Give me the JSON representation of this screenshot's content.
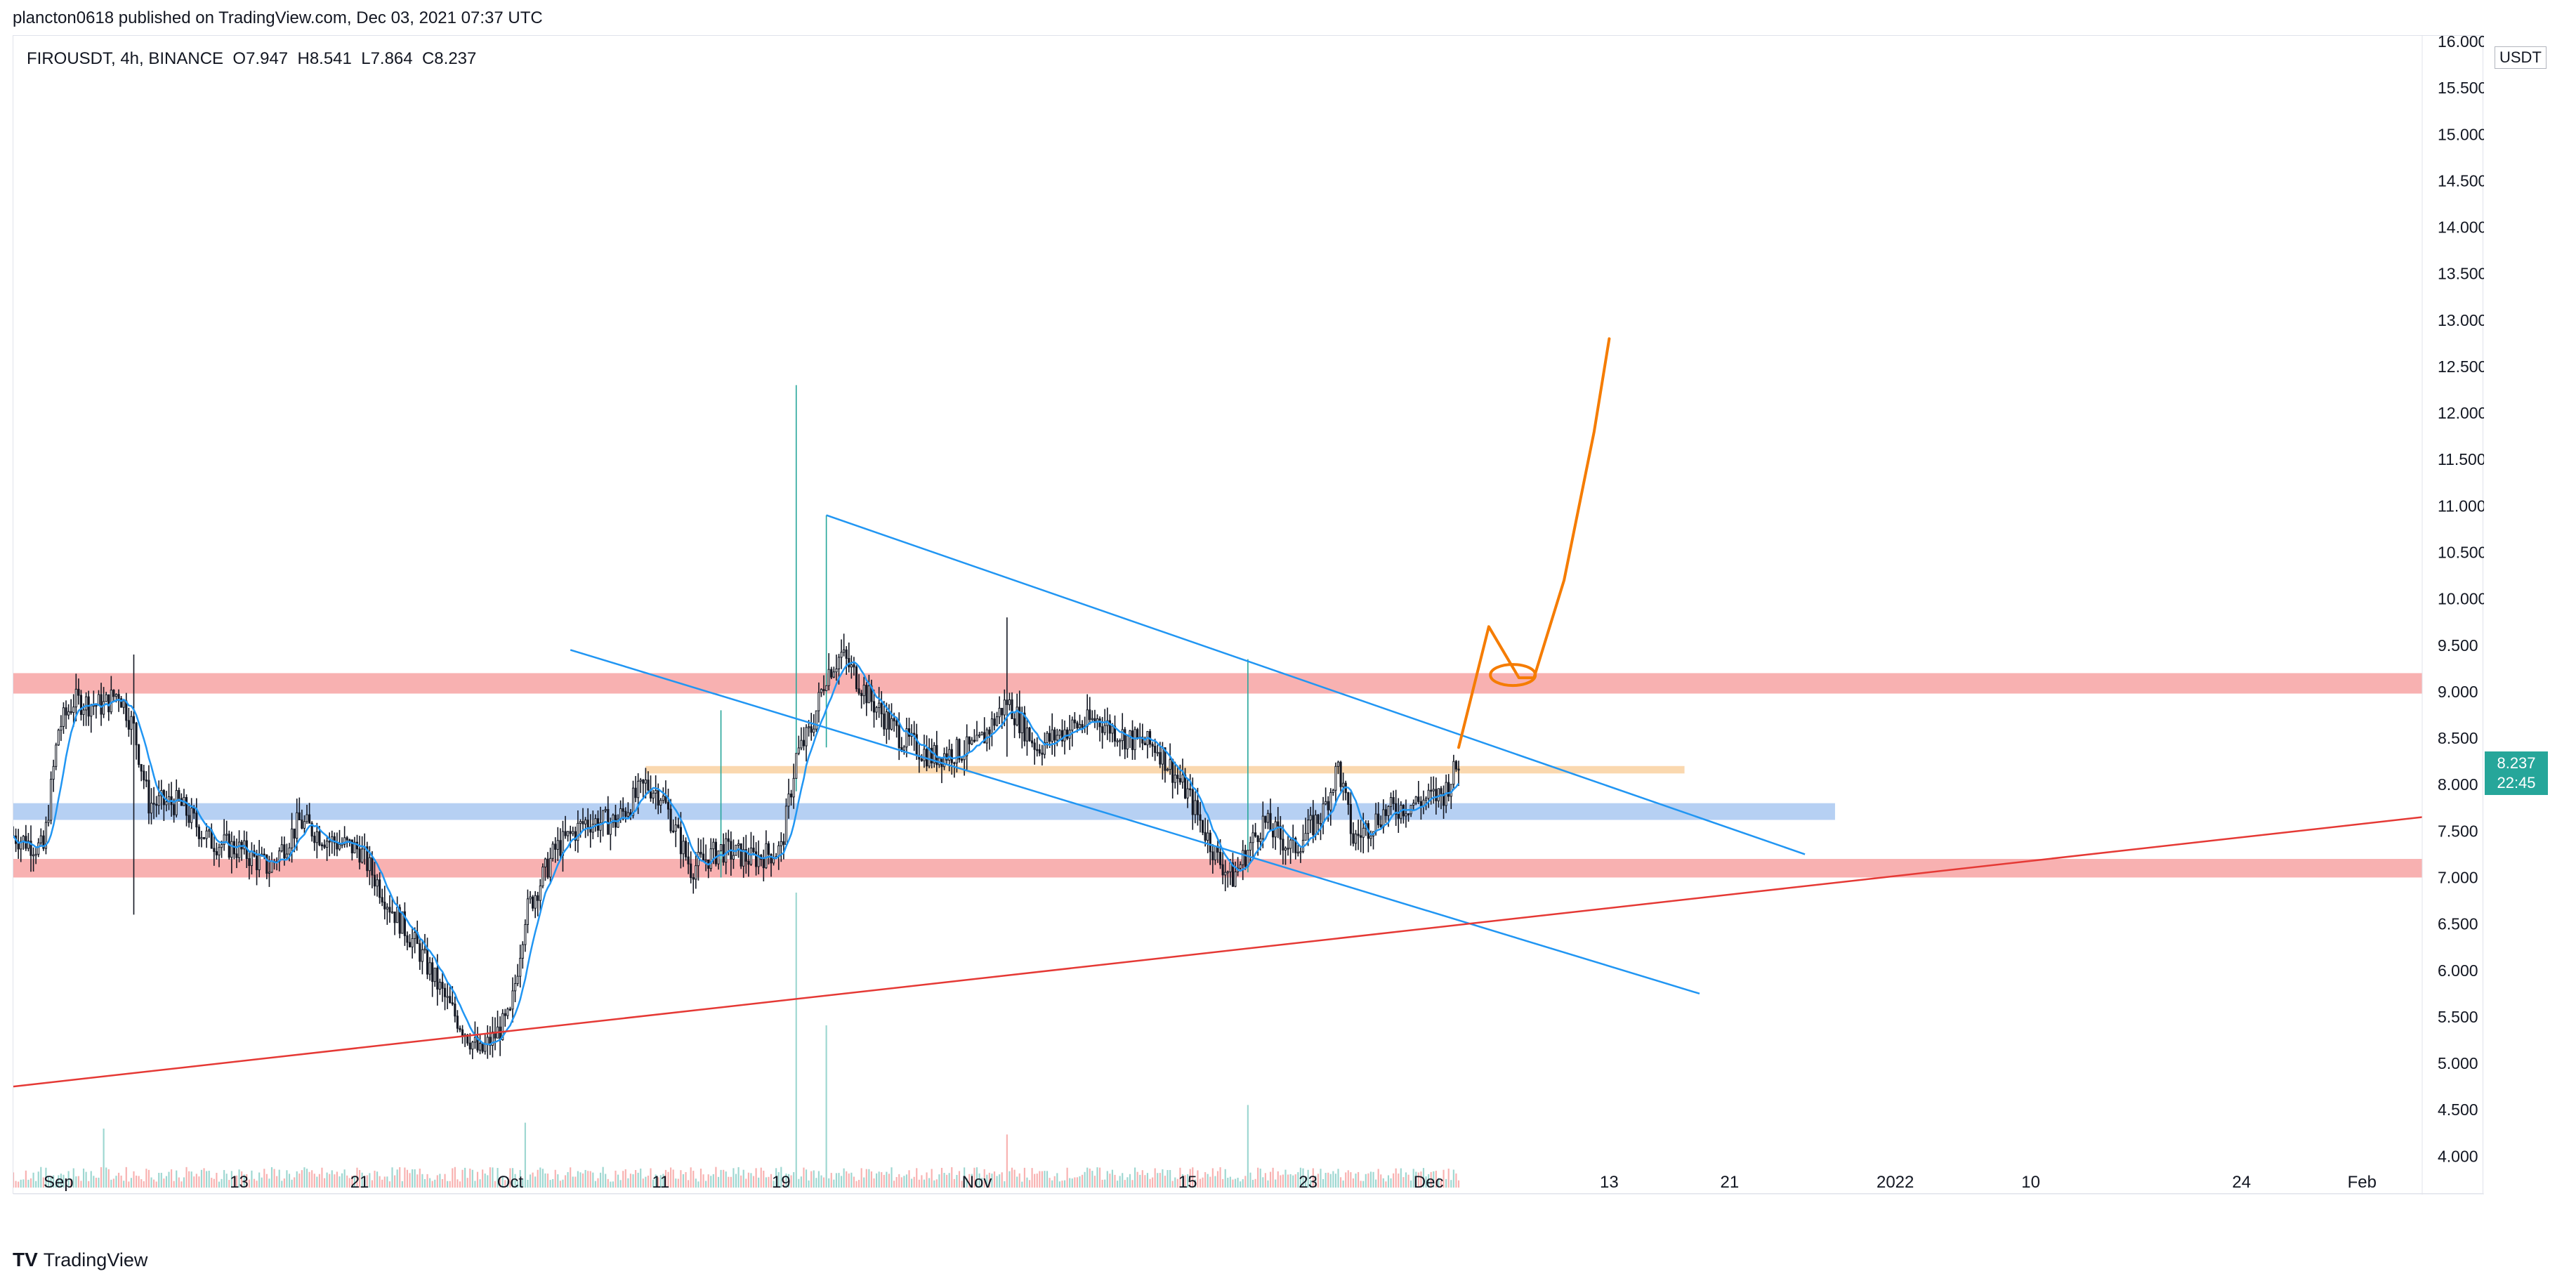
{
  "header": {
    "publish_line": "plancton0618 published on TradingView.com, Dec 03, 2021 07:37 UTC"
  },
  "legend": {
    "symbol": "FIROUSDT, 4h, BINANCE",
    "open": "O7.947",
    "high": "H8.541",
    "low": "L7.864",
    "close": "C8.237"
  },
  "price_axis": {
    "currency": "USDT",
    "ticks": [
      "16.000",
      "15.500",
      "15.000",
      "14.500",
      "14.000",
      "13.500",
      "13.000",
      "12.500",
      "12.000",
      "11.500",
      "11.000",
      "10.500",
      "10.000",
      "9.500",
      "9.000",
      "8.500",
      "8.000",
      "7.500",
      "7.000",
      "6.500",
      "6.000",
      "5.500",
      "5.000",
      "4.500",
      "4.000"
    ],
    "current_price": "8.237",
    "countdown": "22:45"
  },
  "time_axis": {
    "ticks": [
      "Sep",
      "13",
      "21",
      "Oct",
      "11",
      "19",
      "Nov",
      "15",
      "23",
      "Dec",
      "13",
      "21",
      "2022",
      "10",
      "24",
      "Feb"
    ]
  },
  "footer": {
    "brand": "TradingView",
    "logo": "TV"
  },
  "colors": {
    "up": "#26a69a",
    "down": "#ef5350",
    "body": "#131722",
    "ma_line": "#2196f3",
    "channel_line": "#2196f3",
    "support_trend": "#e53935",
    "resistance_zone": "#f7a3a3",
    "blue_zone": "#a9c8f1",
    "orange_zone": "#f9d4a6",
    "projection": "#f57c00"
  },
  "chart_data": {
    "type": "candlestick",
    "symbol": "FIROUSDT",
    "interval": "4h",
    "exchange": "BINANCE",
    "ylim": [
      3.7,
      16.0
    ],
    "x_range": [
      "2021-08-29",
      "2022-02-05"
    ],
    "price_path": [
      [
        "2021-08-29",
        7.45
      ],
      [
        "2021-08-31",
        7.3
      ],
      [
        "2021-09-01",
        8.6
      ],
      [
        "2021-09-02",
        8.9
      ],
      [
        "2021-09-04",
        8.85
      ],
      [
        "2021-09-05",
        9.0
      ],
      [
        "2021-09-06",
        8.6
      ],
      [
        "2021-09-07",
        7.8
      ],
      [
        "2021-09-09",
        7.8
      ],
      [
        "2021-09-11",
        7.4
      ],
      [
        "2021-09-13",
        7.3
      ],
      [
        "2021-09-15",
        7.1
      ],
      [
        "2021-09-17",
        7.6
      ],
      [
        "2021-09-19",
        7.4
      ],
      [
        "2021-09-21",
        7.3
      ],
      [
        "2021-09-23",
        6.7
      ],
      [
        "2021-09-25",
        6.2
      ],
      [
        "2021-09-27",
        5.6
      ],
      [
        "2021-09-29",
        5.1
      ],
      [
        "2021-10-01",
        5.5
      ],
      [
        "2021-10-02",
        6.6
      ],
      [
        "2021-10-04",
        7.3
      ],
      [
        "2021-10-06",
        7.6
      ],
      [
        "2021-10-08",
        7.6
      ],
      [
        "2021-10-10",
        8.0
      ],
      [
        "2021-10-11",
        7.9
      ],
      [
        "2021-10-13",
        7.1
      ],
      [
        "2021-10-15",
        7.3
      ],
      [
        "2021-10-17",
        7.2
      ],
      [
        "2021-10-19",
        7.3
      ],
      [
        "2021-10-20",
        8.3
      ],
      [
        "2021-10-21",
        8.6
      ],
      [
        "2021-10-22",
        9.2
      ],
      [
        "2021-10-23",
        9.4
      ],
      [
        "2021-10-25",
        8.9
      ],
      [
        "2021-10-27",
        8.5
      ],
      [
        "2021-10-29",
        8.3
      ],
      [
        "2021-11-01",
        8.4
      ],
      [
        "2021-11-03",
        8.9
      ],
      [
        "2021-11-05",
        8.4
      ],
      [
        "2021-11-07",
        8.6
      ],
      [
        "2021-11-09",
        8.7
      ],
      [
        "2021-11-11",
        8.5
      ],
      [
        "2021-11-13",
        8.4
      ],
      [
        "2021-11-15",
        7.9
      ],
      [
        "2021-11-17",
        7.2
      ],
      [
        "2021-11-18",
        7.0
      ],
      [
        "2021-11-20",
        7.6
      ],
      [
        "2021-11-22",
        7.3
      ],
      [
        "2021-11-24",
        7.7
      ],
      [
        "2021-11-25",
        8.2
      ],
      [
        "2021-11-26",
        7.4
      ],
      [
        "2021-11-28",
        7.7
      ],
      [
        "2021-11-30",
        7.8
      ],
      [
        "2021-12-02",
        7.9
      ],
      [
        "2021-12-03",
        8.237
      ]
    ],
    "spikes": [
      {
        "date": "2021-10-20",
        "high": 12.3,
        "low": 8.0
      },
      {
        "date": "2021-10-22",
        "high": 10.9,
        "low": 8.4
      },
      {
        "date": "2021-11-03",
        "high": 9.8,
        "low": 8.3
      },
      {
        "date": "2021-11-19",
        "high": 9.35,
        "low": 7.1
      },
      {
        "date": "2021-09-06",
        "high": 9.4,
        "low": 6.6
      },
      {
        "date": "2021-10-15",
        "high": 8.8,
        "low": 7.0
      }
    ],
    "ma_lag": 8,
    "volume_spikes": [
      {
        "date": "2021-10-20",
        "value": 1.0
      },
      {
        "date": "2021-10-22",
        "value": 0.55
      },
      {
        "date": "2021-11-19",
        "value": 0.28
      },
      {
        "date": "2021-10-02",
        "value": 0.22
      },
      {
        "date": "2021-09-04",
        "value": 0.2
      },
      {
        "date": "2021-11-03",
        "value": 0.18
      }
    ],
    "zones": [
      {
        "kind": "resistance",
        "from": "2021-08-29",
        "to": "2022-02-05",
        "low": 8.98,
        "high": 9.2
      },
      {
        "kind": "blue",
        "from": "2021-08-29",
        "to": "2021-12-28",
        "low": 7.62,
        "high": 7.8
      },
      {
        "kind": "orange",
        "from": "2021-10-10",
        "to": "2021-12-18",
        "low": 8.12,
        "high": 8.2
      },
      {
        "kind": "support",
        "from": "2021-08-29",
        "to": "2022-02-05",
        "low": 7.0,
        "high": 7.2
      }
    ],
    "trendlines": [
      {
        "kind": "channel_upper",
        "from": [
          "2021-10-22",
          10.9
        ],
        "to": [
          "2021-12-26",
          7.25
        ]
      },
      {
        "kind": "channel_lower",
        "from": [
          "2021-10-05",
          9.45
        ],
        "to": [
          "2021-12-19",
          5.75
        ]
      },
      {
        "kind": "support_trend",
        "from": [
          "2021-08-29",
          4.75
        ],
        "to": [
          "2022-02-05",
          7.65
        ]
      }
    ],
    "projection": [
      [
        "2021-12-03",
        8.4
      ],
      [
        "2021-12-05",
        9.7
      ],
      [
        "2021-12-07",
        9.15
      ],
      [
        "2021-12-08",
        9.15
      ],
      [
        "2021-12-10",
        10.2
      ],
      [
        "2021-12-12",
        11.8
      ],
      [
        "2021-12-13",
        12.8
      ]
    ]
  }
}
